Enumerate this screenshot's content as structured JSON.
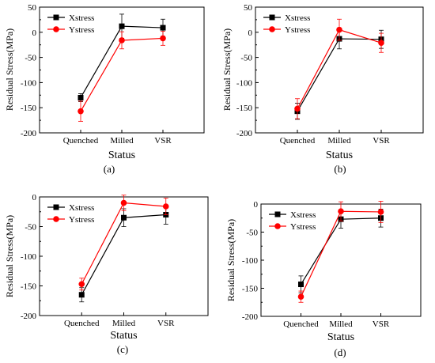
{
  "chart_data": [
    {
      "type": "line",
      "panel_label": "(a)",
      "xlabel": "Status",
      "ylabel": "Residual Stress(MPa)",
      "categories": [
        "Quenched",
        "Milled",
        "VSR"
      ],
      "ylim": [
        -200,
        50
      ],
      "yticks": [
        -200,
        -150,
        -100,
        -50,
        0,
        50
      ],
      "legend_position": "top-left",
      "series": [
        {
          "name": "Xstress",
          "color": "#000000",
          "marker": "square",
          "values": [
            -130,
            12,
            9
          ],
          "errors": [
            8,
            24,
            17
          ]
        },
        {
          "name": "Ystress",
          "color": "#ff0000",
          "marker": "circle",
          "values": [
            -157,
            -16,
            -12
          ],
          "errors": [
            20,
            17,
            14
          ]
        }
      ]
    },
    {
      "type": "line",
      "panel_label": "(b)",
      "xlabel": "Status",
      "ylabel": "Residual Stress(MPa)",
      "categories": [
        "Quenched",
        "Milled",
        "VSR"
      ],
      "ylim": [
        -200,
        50
      ],
      "yticks": [
        -200,
        -150,
        -100,
        -50,
        0,
        50
      ],
      "legend_position": "top-left",
      "series": [
        {
          "name": "Xstress",
          "color": "#000000",
          "marker": "square",
          "values": [
            -157,
            -13,
            -14
          ],
          "errors": [
            16,
            20,
            18
          ]
        },
        {
          "name": "Ystress",
          "color": "#ff0000",
          "marker": "circle",
          "values": [
            -152,
            5,
            -21
          ],
          "errors": [
            20,
            21,
            19
          ]
        }
      ]
    },
    {
      "type": "line",
      "panel_label": "(c)",
      "xlabel": "Status",
      "ylabel": "Residual Stress(MPa)",
      "categories": [
        "Quenched",
        "Milled",
        "VSR"
      ],
      "ylim": [
        -200,
        0
      ],
      "yticks": [
        -200,
        -150,
        -100,
        -50,
        0
      ],
      "legend_position": "top-left",
      "series": [
        {
          "name": "Xstress",
          "color": "#000000",
          "marker": "square",
          "values": [
            -165,
            -35,
            -30
          ],
          "errors": [
            12,
            15,
            16
          ]
        },
        {
          "name": "Ystress",
          "color": "#ff0000",
          "marker": "circle",
          "values": [
            -147,
            -10,
            -16
          ],
          "errors": [
            10,
            13,
            14
          ]
        }
      ]
    },
    {
      "type": "line",
      "panel_label": "(d)",
      "xlabel": "Status",
      "ylabel": "Residual Stress(MPa)",
      "categories": [
        "Quenched",
        "Milled",
        "VSR"
      ],
      "ylim": [
        -200,
        0
      ],
      "yticks": [
        -200,
        -150,
        -100,
        -50,
        0
      ],
      "legend_position": "top-left",
      "series": [
        {
          "name": "Xstress",
          "color": "#000000",
          "marker": "square",
          "values": [
            -143,
            -27,
            -25
          ],
          "errors": [
            15,
            16,
            16
          ]
        },
        {
          "name": "Ystress",
          "color": "#ff0000",
          "marker": "circle",
          "values": [
            -165,
            -13,
            -14
          ],
          "errors": [
            10,
            17,
            19
          ]
        }
      ]
    }
  ]
}
